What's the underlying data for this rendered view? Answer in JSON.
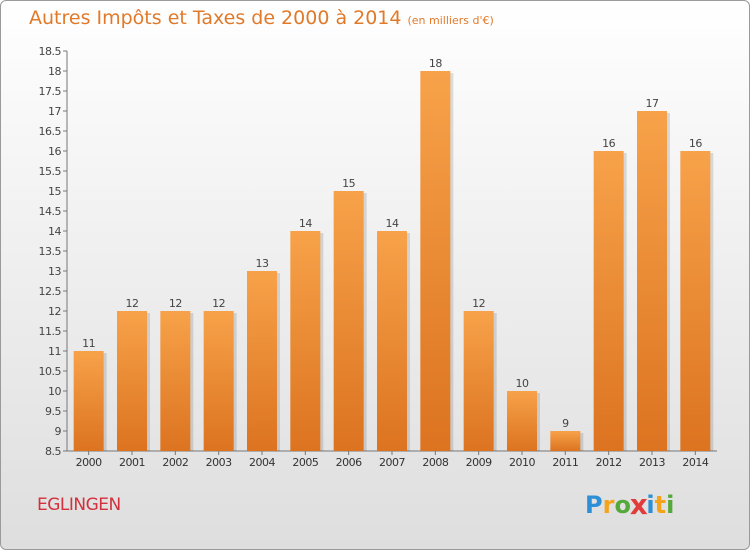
{
  "chart_data": {
    "type": "bar",
    "title": "Autres Impôts et Taxes de 2000 à 2014",
    "subtitle": "(en milliers d'€)",
    "categories": [
      "2000",
      "2001",
      "2002",
      "2003",
      "2004",
      "2005",
      "2006",
      "2007",
      "2008",
      "2009",
      "2010",
      "2011",
      "2012",
      "2013",
      "2014"
    ],
    "values": [
      11,
      12,
      12,
      12,
      13,
      14,
      15,
      14,
      18,
      12,
      10,
      9,
      16,
      17,
      16
    ],
    "ylim": [
      8.5,
      18.5
    ],
    "yticks": [
      "8.5",
      "9",
      "9.5",
      "10",
      "10.5",
      "11",
      "11.5",
      "12",
      "12.5",
      "13",
      "13.5",
      "14",
      "14.5",
      "15",
      "15.5",
      "16",
      "16.5",
      "17",
      "17.5",
      "18",
      "18.5"
    ],
    "xlabel": "",
    "ylabel": "",
    "grid": false,
    "bar_color": "#f08a2e"
  },
  "footer": {
    "commune": "EGLINGEN",
    "logo_letters": [
      "P",
      "r",
      "o",
      "x",
      "i",
      "t",
      "i"
    ],
    "logo_colors": [
      "#2d8fd6",
      "#f3a41b",
      "#54a93a",
      "#e23b3b",
      "#2d8fd6",
      "#f3a41b",
      "#54a93a"
    ]
  }
}
